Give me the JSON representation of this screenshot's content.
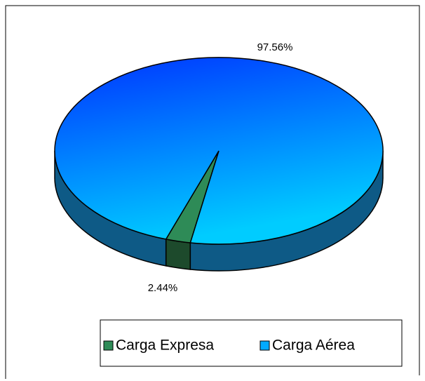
{
  "chart_data": {
    "type": "pie",
    "categories": [
      "Carga Expresa",
      "Carga Aérea"
    ],
    "values": [
      2.44,
      97.56
    ],
    "value_labels": [
      "2.44%",
      "97.56%"
    ],
    "colors": [
      "#2e8b57",
      "#0a4cff"
    ],
    "legend": "bottom"
  }
}
